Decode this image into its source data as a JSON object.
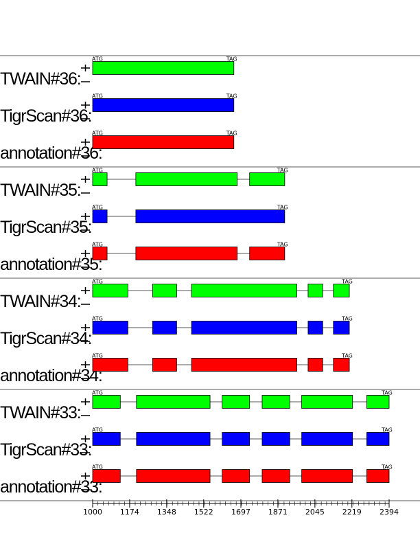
{
  "colors": {
    "TWAIN": "#00ff00",
    "TigrScan": "#0000ff",
    "annotation": "#ff0000"
  },
  "start_codon": "ATG",
  "stop_codon": "TAG",
  "axis": {
    "min": 1000,
    "max": 2394,
    "tick_labels": [
      "1000",
      "1174",
      "1348",
      "1522",
      "1697",
      "1871",
      "2045",
      "2219",
      "2394"
    ]
  },
  "groups": [
    {
      "id": 36,
      "rows": [
        {
          "source": "TWAIN",
          "label": "TWAIN#36:",
          "exons": [
            [
              1000,
              1664
            ]
          ]
        },
        {
          "source": "TigrScan",
          "label": "TigrScan#36:",
          "exons": [
            [
              1000,
              1664
            ]
          ]
        },
        {
          "source": "annotation",
          "label": "annotation#36:",
          "exons": [
            [
              1000,
              1664
            ]
          ]
        }
      ]
    },
    {
      "id": 35,
      "rows": [
        {
          "source": "TWAIN",
          "label": "TWAIN#35:",
          "exons": [
            [
              1000,
              1068
            ],
            [
              1203,
              1680
            ],
            [
              1738,
              1903
            ]
          ]
        },
        {
          "source": "TigrScan",
          "label": "TigrScan#35:",
          "exons": [
            [
              1000,
              1068
            ],
            [
              1203,
              1903
            ]
          ]
        },
        {
          "source": "annotation",
          "label": "annotation#35:",
          "exons": [
            [
              1000,
              1068
            ],
            [
              1203,
              1680
            ],
            [
              1738,
              1903
            ]
          ]
        }
      ]
    },
    {
      "id": 34,
      "rows": [
        {
          "source": "TWAIN",
          "label": "TWAIN#34:",
          "exons": [
            [
              1000,
              1166
            ],
            [
              1282,
              1395
            ],
            [
              1465,
              1960
            ],
            [
              2013,
              2082
            ],
            [
              2132,
              2207
            ]
          ]
        },
        {
          "source": "TigrScan",
          "label": "TigrScan#34:",
          "exons": [
            [
              1000,
              1166
            ],
            [
              1282,
              1395
            ],
            [
              1465,
              1960
            ],
            [
              2013,
              2082
            ],
            [
              2132,
              2207
            ]
          ]
        },
        {
          "source": "annotation",
          "label": "annotation#34:",
          "exons": [
            [
              1000,
              1166
            ],
            [
              1282,
              1395
            ],
            [
              1465,
              1960
            ],
            [
              2013,
              2082
            ],
            [
              2132,
              2207
            ]
          ]
        }
      ]
    },
    {
      "id": 33,
      "rows": [
        {
          "source": "TWAIN",
          "label": "TWAIN#33:",
          "exons": [
            [
              1000,
              1130
            ],
            [
              1206,
              1552
            ],
            [
              1609,
              1738
            ],
            [
              1797,
              1927
            ],
            [
              1983,
              2222
            ],
            [
              2289,
              2394
            ]
          ]
        },
        {
          "source": "TigrScan",
          "label": "TigrScan#33:",
          "exons": [
            [
              1000,
              1130
            ],
            [
              1206,
              1552
            ],
            [
              1609,
              1738
            ],
            [
              1797,
              1927
            ],
            [
              1983,
              2222
            ],
            [
              2289,
              2394
            ]
          ]
        },
        {
          "source": "annotation",
          "label": "annotation#33:",
          "exons": [
            [
              1000,
              1130
            ],
            [
              1206,
              1552
            ],
            [
              1609,
              1738
            ],
            [
              1797,
              1927
            ],
            [
              1983,
              2222
            ],
            [
              2289,
              2394
            ]
          ]
        }
      ]
    }
  ]
}
